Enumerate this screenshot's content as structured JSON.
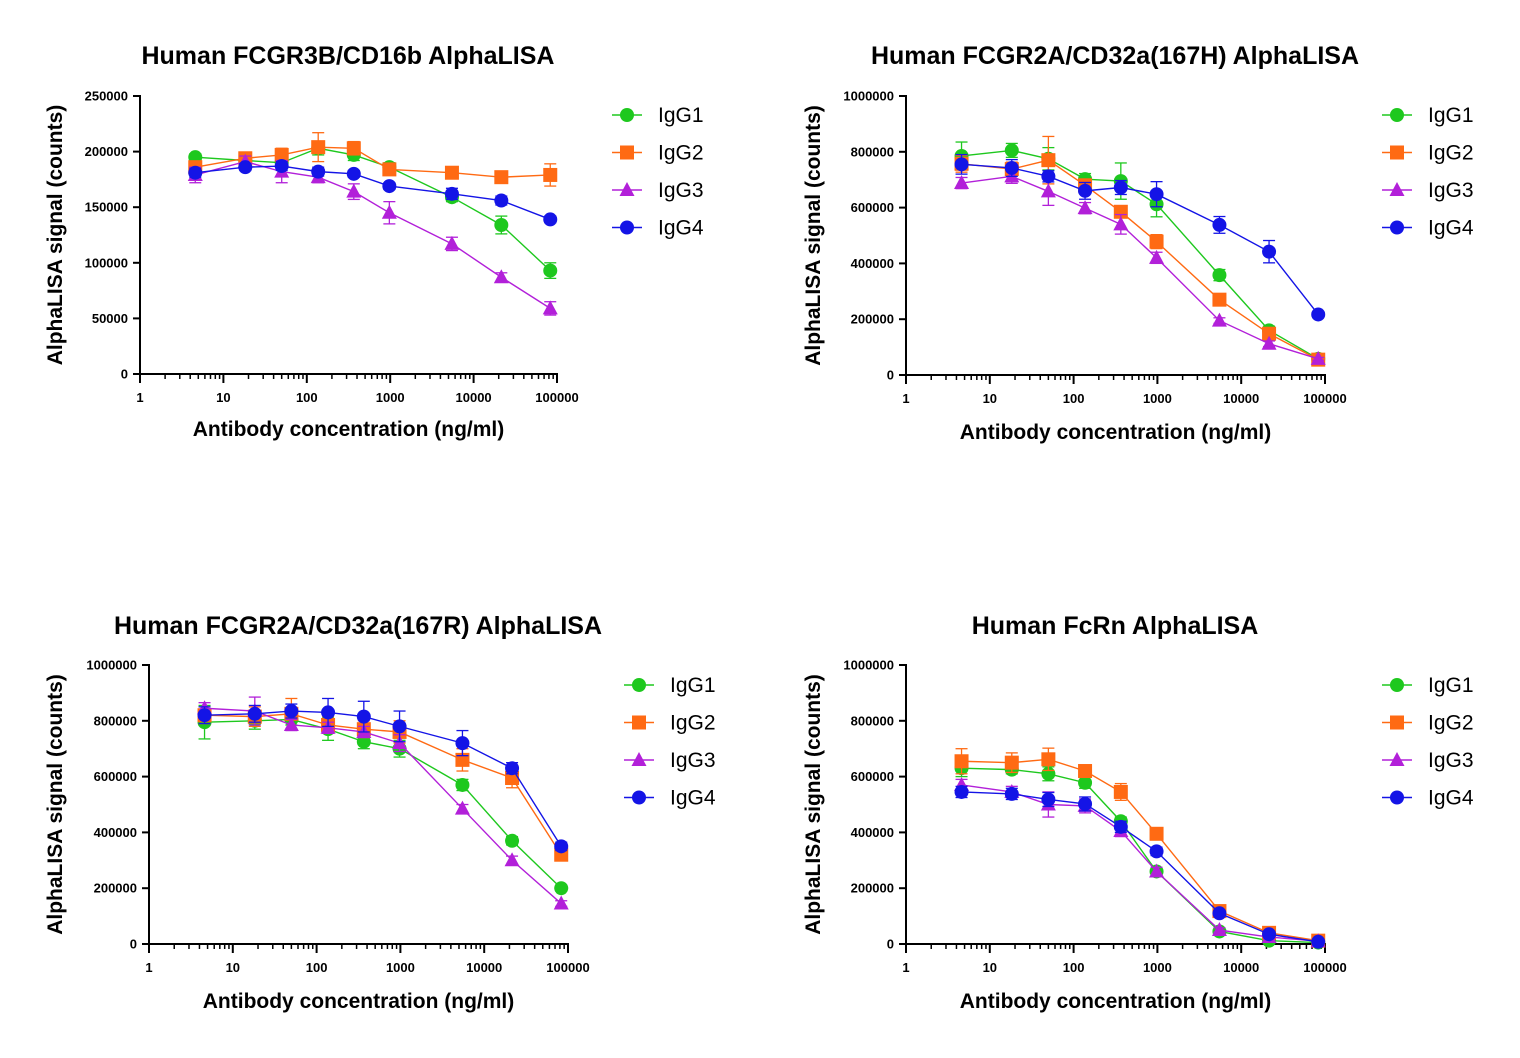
{
  "figure": {
    "colors": {
      "IgG1": "#1ec81e",
      "IgG2": "#ff6a13",
      "IgG3": "#b220d9",
      "IgG4": "#1414e6"
    }
  },
  "chart_data": [
    {
      "type": "line",
      "title": "Human FCGR3B/CD16b AlphaLISA",
      "xlabel": "Antibody concentration (ng/ml)",
      "ylabel": "AlphaLISA signal (counts)",
      "xscale": "log",
      "xlim": [
        1,
        100000
      ],
      "ylim": [
        0,
        250000
      ],
      "xticks": [
        "1",
        "10",
        "100",
        "1000",
        "10000",
        "100000"
      ],
      "yticks": [
        "0",
        "50000",
        "100000",
        "150000",
        "200000",
        "250000"
      ],
      "legend": [
        "IgG1",
        "IgG2",
        "IgG3",
        "IgG4"
      ],
      "legend_position": "right",
      "x": [
        4.6,
        18.3,
        50,
        137,
        366,
        977,
        5500,
        21500,
        83000
      ],
      "series": [
        {
          "name": "IgG1",
          "marker": "circle",
          "values": [
            195000,
            192000,
            190000,
            203000,
            197000,
            186000,
            159000,
            134000,
            93000
          ],
          "err": [
            3000,
            4000,
            5000,
            6000,
            5000,
            4000,
            4000,
            8000,
            7000
          ]
        },
        {
          "name": "IgG2",
          "marker": "square",
          "values": [
            186000,
            194000,
            197000,
            204000,
            203000,
            184000,
            181000,
            177000,
            179000
          ],
          "err": [
            4000,
            5000,
            6000,
            13000,
            6000,
            4000,
            3000,
            4000,
            10000
          ]
        },
        {
          "name": "IgG3",
          "marker": "triangle",
          "values": [
            179000,
            191000,
            182000,
            177000,
            164000,
            145000,
            117000,
            87000,
            59000
          ],
          "err": [
            7000,
            5000,
            10000,
            5000,
            7000,
            10000,
            6000,
            4000,
            6000
          ]
        },
        {
          "name": "IgG4",
          "marker": "circle",
          "values": [
            181000,
            186000,
            187000,
            182000,
            180000,
            169000,
            162000,
            156000,
            139000
          ],
          "err": [
            4000,
            3000,
            4000,
            4000,
            3000,
            3000,
            5000,
            4000,
            3000
          ]
        }
      ]
    },
    {
      "type": "line",
      "title": "Human FCGR2A/CD32a(167H) AlphaLISA",
      "xlabel": "Antibody concentration (ng/ml)",
      "ylabel": "AlphaLISA signal (counts)",
      "xscale": "log",
      "xlim": [
        1,
        100000
      ],
      "ylim": [
        0,
        1000000
      ],
      "xticks": [
        "1",
        "10",
        "100",
        "1000",
        "10000",
        "100000"
      ],
      "yticks": [
        "0",
        "200000",
        "400000",
        "600000",
        "800000",
        "1000000"
      ],
      "legend": [
        "IgG1",
        "IgG2",
        "IgG3",
        "IgG4"
      ],
      "legend_position": "right",
      "x": [
        4.6,
        18.3,
        50,
        137,
        366,
        977,
        5500,
        21500,
        83000
      ],
      "series": [
        {
          "name": "IgG1",
          "marker": "circle",
          "values": [
            785000,
            805000,
            775000,
            702000,
            695000,
            612000,
            358000,
            160000,
            58000
          ],
          "err": [
            50000,
            25000,
            40000,
            20000,
            65000,
            45000,
            20000,
            15000,
            8000
          ]
        },
        {
          "name": "IgG2",
          "marker": "square",
          "values": [
            757000,
            738000,
            770000,
            680000,
            585000,
            478000,
            270000,
            148000,
            55000
          ],
          "err": [
            30000,
            25000,
            85000,
            20000,
            20000,
            25000,
            15000,
            10000,
            8000
          ]
        },
        {
          "name": "IgG3",
          "marker": "triangle",
          "values": [
            688000,
            712000,
            658000,
            598000,
            540000,
            420000,
            195000,
            112000,
            58000
          ],
          "err": [
            20000,
            25000,
            50000,
            20000,
            35000,
            20000,
            10000,
            10000,
            5000
          ]
        },
        {
          "name": "IgG4",
          "marker": "circle",
          "values": [
            755000,
            742000,
            712000,
            660000,
            672000,
            648000,
            538000,
            442000,
            217000
          ],
          "err": [
            35000,
            30000,
            20000,
            30000,
            25000,
            45000,
            30000,
            40000,
            10000
          ]
        }
      ]
    },
    {
      "type": "line",
      "title": "Human FCGR2A/CD32a(167R) AlphaLISA",
      "xlabel": "Antibody concentration (ng/ml)",
      "ylabel": "AlphaLISA signal (counts)",
      "xscale": "log",
      "xlim": [
        1,
        100000
      ],
      "ylim": [
        0,
        1000000
      ],
      "xticks": [
        "1",
        "10",
        "100",
        "1000",
        "10000",
        "100000"
      ],
      "yticks": [
        "0",
        "200000",
        "400000",
        "600000",
        "800000",
        "1000000"
      ],
      "legend": [
        "IgG1",
        "IgG2",
        "IgG3",
        "IgG4"
      ],
      "legend_position": "right",
      "x": [
        4.6,
        18.3,
        50,
        137,
        366,
        977,
        5500,
        21500,
        83000
      ],
      "series": [
        {
          "name": "IgG1",
          "marker": "circle",
          "values": [
            795000,
            800000,
            805000,
            770000,
            725000,
            700000,
            570000,
            370000,
            200000
          ],
          "err": [
            60000,
            30000,
            20000,
            40000,
            25000,
            30000,
            20000,
            15000,
            10000
          ]
        },
        {
          "name": "IgG2",
          "marker": "square",
          "values": [
            820000,
            815000,
            825000,
            785000,
            770000,
            760000,
            660000,
            595000,
            320000
          ],
          "err": [
            30000,
            35000,
            55000,
            30000,
            30000,
            40000,
            40000,
            35000,
            20000
          ]
        },
        {
          "name": "IgG3",
          "marker": "triangle",
          "values": [
            845000,
            835000,
            785000,
            775000,
            760000,
            720000,
            485000,
            300000,
            145000
          ],
          "err": [
            20000,
            50000,
            20000,
            20000,
            20000,
            30000,
            15000,
            15000,
            10000
          ]
        },
        {
          "name": "IgG4",
          "marker": "circle",
          "values": [
            820000,
            825000,
            835000,
            830000,
            815000,
            780000,
            720000,
            630000,
            350000
          ],
          "err": [
            30000,
            30000,
            25000,
            50000,
            55000,
            55000,
            45000,
            20000,
            15000
          ]
        }
      ]
    },
    {
      "type": "line",
      "title": "Human FcRn AlphaLISA",
      "xlabel": "Antibody concentration (ng/ml)",
      "ylabel": "AlphaLISA signal (counts)",
      "xscale": "log",
      "xlim": [
        1,
        100000
      ],
      "ylim": [
        0,
        1000000
      ],
      "xticks": [
        "1",
        "10",
        "100",
        "1000",
        "10000",
        "100000"
      ],
      "yticks": [
        "0",
        "200000",
        "400000",
        "600000",
        "800000",
        "1000000"
      ],
      "legend": [
        "IgG1",
        "IgG2",
        "IgG3",
        "IgG4"
      ],
      "legend_position": "right",
      "x": [
        4.6,
        18.3,
        50,
        137,
        366,
        977,
        5500,
        21500,
        83000
      ],
      "series": [
        {
          "name": "IgG1",
          "marker": "circle",
          "values": [
            630000,
            625000,
            610000,
            578000,
            440000,
            260000,
            45000,
            12000,
            5000
          ],
          "err": [
            30000,
            15000,
            25000,
            20000,
            15000,
            10000,
            8000,
            5000,
            3000
          ]
        },
        {
          "name": "IgG2",
          "marker": "square",
          "values": [
            655000,
            650000,
            662000,
            620000,
            545000,
            395000,
            118000,
            40000,
            12000
          ],
          "err": [
            45000,
            35000,
            40000,
            20000,
            30000,
            20000,
            10000,
            8000,
            5000
          ]
        },
        {
          "name": "IgG3",
          "marker": "triangle",
          "values": [
            570000,
            545000,
            500000,
            495000,
            405000,
            260000,
            50000,
            25000,
            10000
          ],
          "err": [
            20000,
            20000,
            45000,
            25000,
            20000,
            15000,
            8000,
            5000,
            3000
          ]
        },
        {
          "name": "IgG4",
          "marker": "circle",
          "values": [
            545000,
            538000,
            518000,
            502000,
            420000,
            332000,
            110000,
            35000,
            8000
          ],
          "err": [
            20000,
            20000,
            25000,
            25000,
            20000,
            15000,
            10000,
            8000,
            3000
          ]
        }
      ]
    }
  ]
}
